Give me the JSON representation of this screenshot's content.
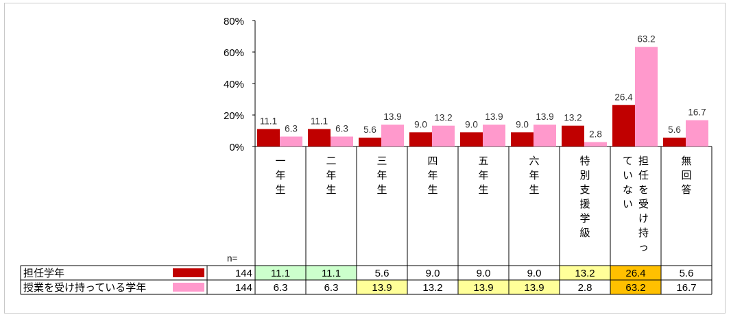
{
  "chart_data": {
    "type": "bar",
    "title": "",
    "xlabel": "",
    "ylabel": "",
    "ylim": [
      0,
      80
    ],
    "yticks": [
      "0%",
      "20%",
      "40%",
      "60%",
      "80%"
    ],
    "grid": false,
    "legend": "table-left",
    "n_label": "n=",
    "categories": [
      "一年生",
      "二年生",
      "三年生",
      "四年生",
      "五年生",
      "六年生",
      "特別支援学級",
      "担任を受け持っていない",
      "無回答"
    ],
    "category_lines": [
      [
        "一年生"
      ],
      [
        "二年生"
      ],
      [
        "三年生"
      ],
      [
        "四年生"
      ],
      [
        "五年生"
      ],
      [
        "六年生"
      ],
      [
        "特別支援学級"
      ],
      [
        "担任を受け持っ",
        "ていない"
      ],
      [
        "無回答"
      ]
    ],
    "series": [
      {
        "name": "担任学年",
        "n": "144",
        "color": "#c00000",
        "values": [
          11.1,
          11.1,
          5.6,
          9.0,
          9.0,
          9.0,
          13.2,
          26.4,
          5.6
        ],
        "labels": [
          "11.1",
          "11.1",
          "5.6",
          "9.0",
          "9.0",
          "9.0",
          "13.2",
          "26.4",
          "5.6"
        ],
        "highlight": [
          "#ccffcc",
          "#ccffcc",
          "",
          "",
          "",
          "",
          "#ffff99",
          "#ffc000",
          ""
        ]
      },
      {
        "name": "授業を受け持っている学年",
        "n": "144",
        "color": "#ff99cc",
        "values": [
          6.3,
          6.3,
          13.9,
          13.2,
          13.9,
          13.9,
          2.8,
          63.2,
          16.7
        ],
        "labels": [
          "6.3",
          "6.3",
          "13.9",
          "13.2",
          "13.9",
          "13.9",
          "2.8",
          "63.2",
          "16.7"
        ],
        "highlight": [
          "",
          "",
          "#ffff99",
          "",
          "#ffff99",
          "#ffff99",
          "",
          "#ffc000",
          ""
        ]
      }
    ]
  }
}
